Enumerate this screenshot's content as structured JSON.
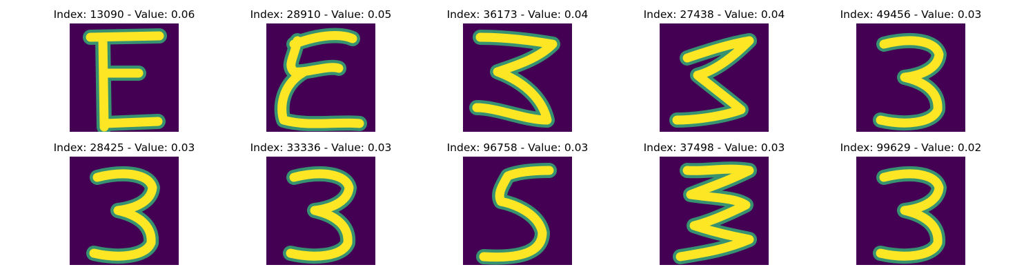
{
  "colors": {
    "background": "#440154",
    "stroke": "#fde725",
    "edge": "#35b779"
  },
  "panels": [
    {
      "title": "Index: 13090 - Value: 0.06",
      "glyph": "E-letter"
    },
    {
      "title": "Index: 28910 - Value: 0.05",
      "glyph": "curly-E"
    },
    {
      "title": "Index: 36173 - Value: 0.04",
      "glyph": "zigzag-3"
    },
    {
      "title": "Index: 27438 - Value: 0.04",
      "glyph": "sigma"
    },
    {
      "title": "Index: 49456 - Value: 0.03",
      "glyph": "three"
    },
    {
      "title": "Index: 28425 - Value: 0.03",
      "glyph": "three"
    },
    {
      "title": "Index: 33336 - Value: 0.03",
      "glyph": "three"
    },
    {
      "title": "Index: 96758 - Value: 0.03",
      "glyph": "five"
    },
    {
      "title": "Index: 37498 - Value: 0.03",
      "glyph": "zigzag"
    },
    {
      "title": "Index: 99629 - Value: 0.02",
      "glyph": "three"
    }
  ]
}
